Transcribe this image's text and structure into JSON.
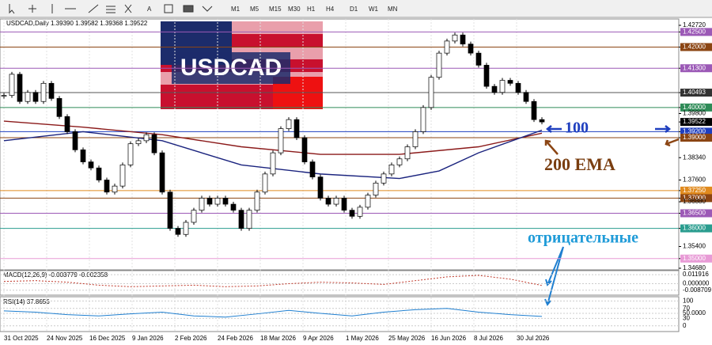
{
  "toolbar": {
    "timeframes": [
      "M1",
      "M5",
      "M15",
      "M30",
      "H1",
      "H4",
      "D1",
      "W1",
      "MN"
    ]
  },
  "chart_data": {
    "type": "candlestick",
    "header": "USDCAD,Daily 1.39390 1.39582 1.39368 1.39522",
    "banner": "USDCAD",
    "ylim": [
      1.3468,
      1.4272
    ],
    "yticks": [
      {
        "value": 1.4272,
        "label": "1.42720"
      },
      {
        "value": 1.425,
        "label": "1.42500",
        "bg": "#9b59b6"
      },
      {
        "value": 1.42,
        "label": "1.42000",
        "bg": "#8b4513"
      },
      {
        "value": 1.413,
        "label": "1.41300",
        "bg": "#9b59b6"
      },
      {
        "value": 1.40493,
        "label": "1.40493",
        "bg": "#333333"
      },
      {
        "value": 1.4,
        "label": "1.40000",
        "bg": "#2e8b57"
      },
      {
        "value": 1.398,
        "label": "1.39800"
      },
      {
        "value": 1.39522,
        "label": "1.39522",
        "bg": "#000000"
      },
      {
        "value": 1.392,
        "label": "1.39200",
        "bg": "#1f3fbf"
      },
      {
        "value": 1.39,
        "label": "1.39000",
        "bg": "#8b4513"
      },
      {
        "value": 1.3834,
        "label": "1.38340"
      },
      {
        "value": 1.376,
        "label": "1.37600"
      },
      {
        "value": 1.3725,
        "label": "1.37250",
        "bg": "#e08a1e"
      },
      {
        "value": 1.37,
        "label": "1.37000",
        "bg": "#8b4513"
      },
      {
        "value": 1.3688,
        "label": "1.36880"
      },
      {
        "value": 1.365,
        "label": "1.36500",
        "bg": "#9b59b6"
      },
      {
        "value": 1.36,
        "label": "1.36000",
        "bg": "#2a9d8f"
      },
      {
        "value": 1.354,
        "label": "1.35400"
      },
      {
        "value": 1.35,
        "label": "1.35000",
        "bg": "#e89bd6"
      },
      {
        "value": 1.3468,
        "label": "1.34680"
      }
    ],
    "levels": [
      {
        "value": 1.425,
        "color": "#9b59b6"
      },
      {
        "value": 1.42,
        "color": "#8b4513"
      },
      {
        "value": 1.413,
        "color": "#9b59b6"
      },
      {
        "value": 1.40493,
        "color": "#555555"
      },
      {
        "value": 1.4,
        "color": "#2e8b57"
      },
      {
        "value": 1.392,
        "color": "#1f3fbf"
      },
      {
        "value": 1.39,
        "color": "#8b4513"
      },
      {
        "value": 1.3725,
        "color": "#e08a1e"
      },
      {
        "value": 1.37,
        "color": "#8b4513"
      },
      {
        "value": 1.365,
        "color": "#9b59b6"
      },
      {
        "value": 1.36,
        "color": "#2a9d8f"
      },
      {
        "value": 1.35,
        "color": "#e89bd6"
      }
    ],
    "xticks": [
      {
        "value": 0,
        "label": "31 Oct 2025"
      },
      {
        "value": 5.4,
        "label": "24 Nov 2025"
      },
      {
        "value": 10.8,
        "label": "16 Dec 2025"
      },
      {
        "value": 16.2,
        "label": "9 Jan 2026"
      },
      {
        "value": 21.6,
        "label": "2 Feb 2026"
      },
      {
        "value": 27,
        "label": "24 Feb 2026"
      },
      {
        "value": 32.4,
        "label": "18 Mar 2026"
      },
      {
        "value": 37.8,
        "label": "9 Apr 2026"
      },
      {
        "value": 43.2,
        "label": "1 May 2026"
      },
      {
        "value": 48.6,
        "label": "25 May 2026"
      },
      {
        "value": 54,
        "label": "16 Jun 2026"
      },
      {
        "value": 59.4,
        "label": "8 Jul 2026"
      },
      {
        "value": 64.8,
        "label": "30 Jul 2026"
      }
    ],
    "close": [
      1.404,
      1.411,
      1.402,
      1.405,
      1.402,
      1.408,
      1.403,
      1.397,
      1.392,
      1.386,
      1.382,
      1.38,
      1.376,
      1.372,
      1.374,
      1.381,
      1.388,
      1.389,
      1.391,
      1.385,
      1.372,
      1.36,
      1.358,
      1.362,
      1.366,
      1.37,
      1.368,
      1.37,
      1.368,
      1.366,
      1.36,
      1.366,
      1.372,
      1.378,
      1.385,
      1.393,
      1.396,
      1.39,
      1.382,
      1.377,
      1.37,
      1.368,
      1.37,
      1.366,
      1.364,
      1.367,
      1.371,
      1.375,
      1.378,
      1.381,
      1.383,
      1.387,
      1.392,
      1.4,
      1.41,
      1.418,
      1.422,
      1.424,
      1.421,
      1.418,
      1.414,
      1.407,
      1.405,
      1.409,
      1.408,
      1.405,
      1.402,
      1.396,
      1.39522
    ],
    "ema200": {
      "color": "#8b1a1a",
      "x": [
        0,
        10,
        20,
        30,
        40,
        50,
        60,
        68
      ],
      "values": [
        1.3955,
        1.3935,
        1.391,
        1.387,
        1.3845,
        1.3845,
        1.387,
        1.3915
      ]
    },
    "ema100": {
      "color": "#1a237e",
      "x": [
        0,
        10,
        20,
        30,
        40,
        50,
        55,
        60,
        68
      ],
      "values": [
        1.389,
        1.392,
        1.389,
        1.381,
        1.378,
        1.3765,
        1.379,
        1.385,
        1.3925
      ]
    },
    "annotations": {
      "ma100": "100",
      "ema200": "200 EMA",
      "negative": "отрицательные"
    },
    "macd": {
      "label": "MACD(12,26,9) -0.003779 -0.002358",
      "ylim": [
        -0.0152,
        0.0173
      ],
      "yticks": [
        0.011916,
        {
          "value": 0,
          "label": "0.000000"
        },
        -0.008709
      ],
      "x": [
        0,
        4,
        8,
        12,
        16,
        20,
        24,
        28,
        32,
        36,
        40,
        44,
        48,
        52,
        56,
        60,
        64,
        68
      ],
      "values": [
        0.003,
        0.004,
        0.002,
        -0.002,
        -0.004,
        -0.003,
        -0.002,
        -0.004,
        -0.003,
        0.0,
        0.002,
        0.001,
        -0.001,
        0.004,
        0.009,
        0.011,
        0.006,
        -0.002358
      ]
    },
    "rsi": {
      "label": "RSI(14) 37.8656",
      "ylim": [
        -23,
        117
      ],
      "yticks": [
        100,
        70,
        {
          "value": 50,
          "label": "50.0000"
        },
        30,
        0
      ],
      "x": [
        0,
        4,
        8,
        12,
        16,
        20,
        24,
        28,
        32,
        36,
        40,
        44,
        48,
        52,
        56,
        60,
        64,
        68
      ],
      "values": [
        60,
        55,
        45,
        40,
        48,
        55,
        40,
        35,
        48,
        62,
        50,
        40,
        55,
        65,
        70,
        55,
        45,
        37.8656
      ]
    }
  }
}
